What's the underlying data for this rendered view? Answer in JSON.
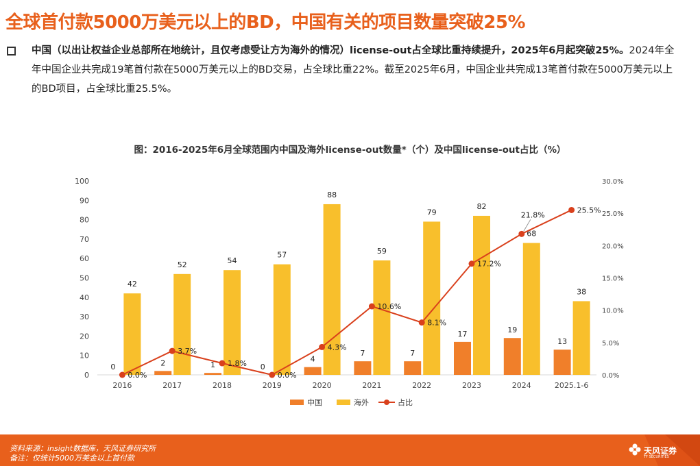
{
  "headline": "全球首付款5000万美元以上的BD，中国有关的项目数量突破25%",
  "bullet": {
    "bold_text": "中国（以出让权益企业总部所在地统计，且仅考虑受让方为海外的情况）license-out占全球比重持续提升，2025年6月起突破25%。",
    "normal_text": "2024年全年中国企业共完成19笔首付款在5000万美元以上的BD交易，占全球比重22%。截至2025年6月，中国企业共完成13笔首付款在5000万美元以上的BD项目，占全球比重25.5%。"
  },
  "chart_data": {
    "type": "bar",
    "title": "图：2016-2025年6月全球范围内中国及海外license-out数量*（个）及中国license-out占比（%）",
    "categories": [
      "2016",
      "2017",
      "2018",
      "2019",
      "2020",
      "2021",
      "2022",
      "2023",
      "2024",
      "2025.1-6"
    ],
    "series": [
      {
        "name": "中国",
        "type": "bar",
        "color": "#f07f2a",
        "values": [
          0,
          2,
          1,
          0,
          4,
          7,
          7,
          17,
          19,
          13
        ],
        "labels": [
          "0",
          "2",
          "1",
          "0",
          "4",
          "7",
          "7",
          "17",
          "19",
          "13"
        ]
      },
      {
        "name": "海外",
        "type": "bar",
        "color": "#f8bf2c",
        "values": [
          42,
          52,
          54,
          57,
          88,
          59,
          79,
          82,
          68,
          38
        ],
        "labels": [
          "42",
          "52",
          "54",
          "57",
          "88",
          "59",
          "79",
          "82",
          "68",
          "38"
        ]
      },
      {
        "name": "占比",
        "type": "line",
        "axis": "right",
        "color": "#d9401c",
        "values": [
          0.0,
          3.7,
          1.8,
          0.0,
          4.3,
          10.6,
          8.1,
          17.2,
          21.8,
          25.5
        ],
        "labels": [
          "0.0%",
          "3.7%",
          "1.8%",
          "0.0%",
          "4.3%",
          "10.6%",
          "8.1%",
          "17.2%",
          "21.8%",
          "25.5%"
        ]
      }
    ],
    "y_left": {
      "range": [
        0,
        100
      ],
      "ticks": [
        "0",
        "10",
        "20",
        "30",
        "40",
        "50",
        "60",
        "70",
        "80",
        "90",
        "100"
      ]
    },
    "y_right": {
      "range": [
        0,
        30
      ],
      "ticks": [
        "0.0%",
        "5.0%",
        "10.0%",
        "15.0%",
        "20.0%",
        "25.0%",
        "30.0%"
      ]
    },
    "legend": {
      "position": "bottom",
      "entries": [
        "中国",
        "海外",
        "占比"
      ]
    },
    "grid": false
  },
  "footer": {
    "source": "资料来源：insight数据库，天风证券研究所",
    "note": "备注：仅统计5000万美金以上首付款"
  },
  "logo": {
    "name": "天风证券",
    "subtitle": "TF SECURITIES"
  },
  "colors": {
    "accent": "#e8601c",
    "china_bar": "#f07f2a",
    "overseas_bar": "#f8bf2c",
    "ratio_line": "#d9401c"
  }
}
